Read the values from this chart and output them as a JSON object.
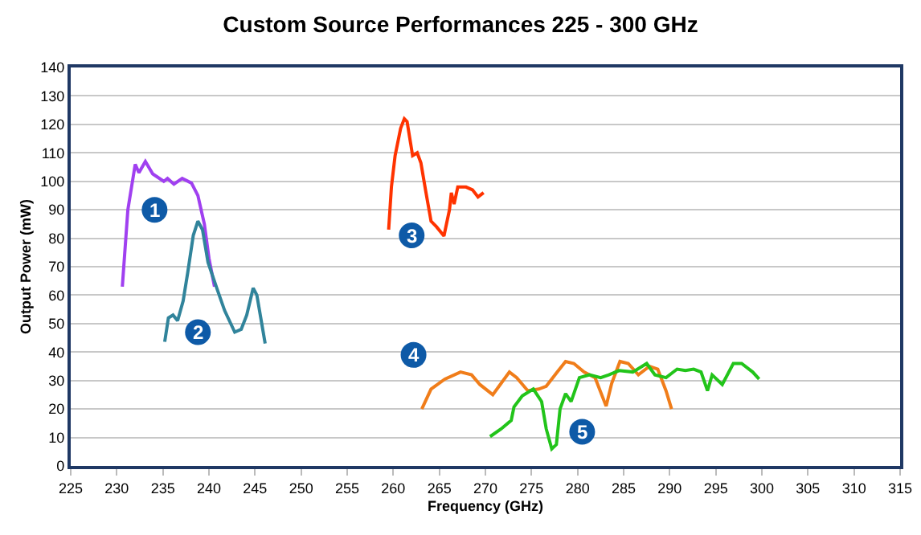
{
  "chart_data": {
    "type": "line",
    "title": "Custom Source Performances 225 - 300 GHz",
    "xlabel": "Frequency (GHz)",
    "ylabel": "Output Power (mW)",
    "xlim": [
      225,
      315
    ],
    "xticks": [
      225,
      230,
      235,
      240,
      245,
      250,
      255,
      260,
      265,
      270,
      275,
      280,
      285,
      290,
      295,
      300,
      305,
      310,
      315
    ],
    "ylim": [
      0,
      140
    ],
    "yticks": [
      0,
      10,
      20,
      30,
      40,
      50,
      60,
      70,
      80,
      90,
      100,
      110,
      120,
      130,
      140
    ],
    "grid": "y",
    "series": [
      {
        "color": "#a040f0",
        "x": [
          230.6,
          231.2,
          232,
          232.4,
          233.1,
          233.9,
          235.1,
          235.5,
          236.2,
          237.1,
          238.1,
          238.8,
          239.5,
          240,
          240.6
        ],
        "values": [
          63,
          90,
          106,
          103,
          107,
          102.6,
          100,
          101,
          99,
          101,
          99.4,
          95,
          85,
          73,
          63
        ]
      },
      {
        "color": "#31849b",
        "x": [
          235.2,
          235.6,
          236.1,
          236.6,
          237.2,
          237.7,
          238.3,
          238.8,
          239.3,
          239.9,
          240.9,
          241.7,
          242.8,
          243.5,
          244.1,
          244.8,
          245.2,
          246.1
        ],
        "values": [
          43.6,
          52,
          53,
          51,
          58,
          68,
          81,
          86,
          83,
          71.5,
          62,
          54.6,
          47,
          48,
          53,
          62.5,
          60,
          43
        ]
      },
      {
        "color": "#ff3300",
        "x": [
          259.5,
          259.8,
          260.2,
          260.8,
          261.2,
          261.5,
          262.1,
          262.6,
          263,
          263.5,
          264.1,
          264.7,
          265.5,
          266.1,
          266.3,
          266.6,
          267,
          267.9,
          268.6,
          269.2,
          269.8
        ],
        "values": [
          83,
          98,
          109,
          118.6,
          122,
          121,
          109,
          110,
          106.5,
          97,
          86,
          84,
          80.8,
          90,
          96,
          92,
          98,
          98,
          97,
          94.5,
          96
        ]
      },
      {
        "color": "#f07d1a",
        "x": [
          263.1,
          264.1,
          265.6,
          267.3,
          268.5,
          269.4,
          270.8,
          271.7,
          272.6,
          273.4,
          274.6,
          275.8,
          276.6,
          277.8,
          278.7,
          279.6,
          280.7,
          281.9,
          283.1,
          283.7,
          284.6,
          285.5,
          286.6,
          287.8,
          288.7,
          289.6,
          290.2
        ],
        "values": [
          20,
          27,
          30.5,
          33,
          32,
          28.6,
          25,
          29,
          33,
          31,
          26.4,
          27,
          28,
          33,
          36.7,
          36,
          33,
          31,
          21,
          29,
          36.7,
          36,
          32,
          35,
          34,
          26.4,
          20
        ]
      },
      {
        "color": "#22c41a",
        "x": [
          270.5,
          271.7,
          272.8,
          273.1,
          274,
          275.2,
          276.1,
          276.6,
          277.2,
          277.7,
          278.1,
          278.7,
          279.3,
          280.2,
          281.3,
          282.5,
          283.4,
          284.5,
          286,
          287.5,
          288.4,
          289.6,
          290.8,
          291.7,
          292.6,
          293.4,
          294.1,
          294.6,
          295.7,
          296.9,
          297.8,
          299,
          299.7
        ],
        "values": [
          10.3,
          13,
          16,
          20.7,
          24.6,
          27,
          22.6,
          13,
          6,
          7.5,
          20,
          25.4,
          22.6,
          31,
          32,
          31,
          32,
          33.5,
          33,
          36,
          32,
          31,
          34,
          33.5,
          34,
          33,
          26.4,
          32,
          28.6,
          36,
          36,
          33,
          30.5
        ]
      }
    ],
    "annotations": [
      {
        "text": "1",
        "x": 234.1,
        "y": 90
      },
      {
        "text": "2",
        "x": 238.8,
        "y": 47
      },
      {
        "text": "3",
        "x": 262,
        "y": 81
      },
      {
        "text": "4",
        "x": 262.2,
        "y": 39
      },
      {
        "text": "5",
        "x": 280.5,
        "y": 12
      }
    ]
  }
}
